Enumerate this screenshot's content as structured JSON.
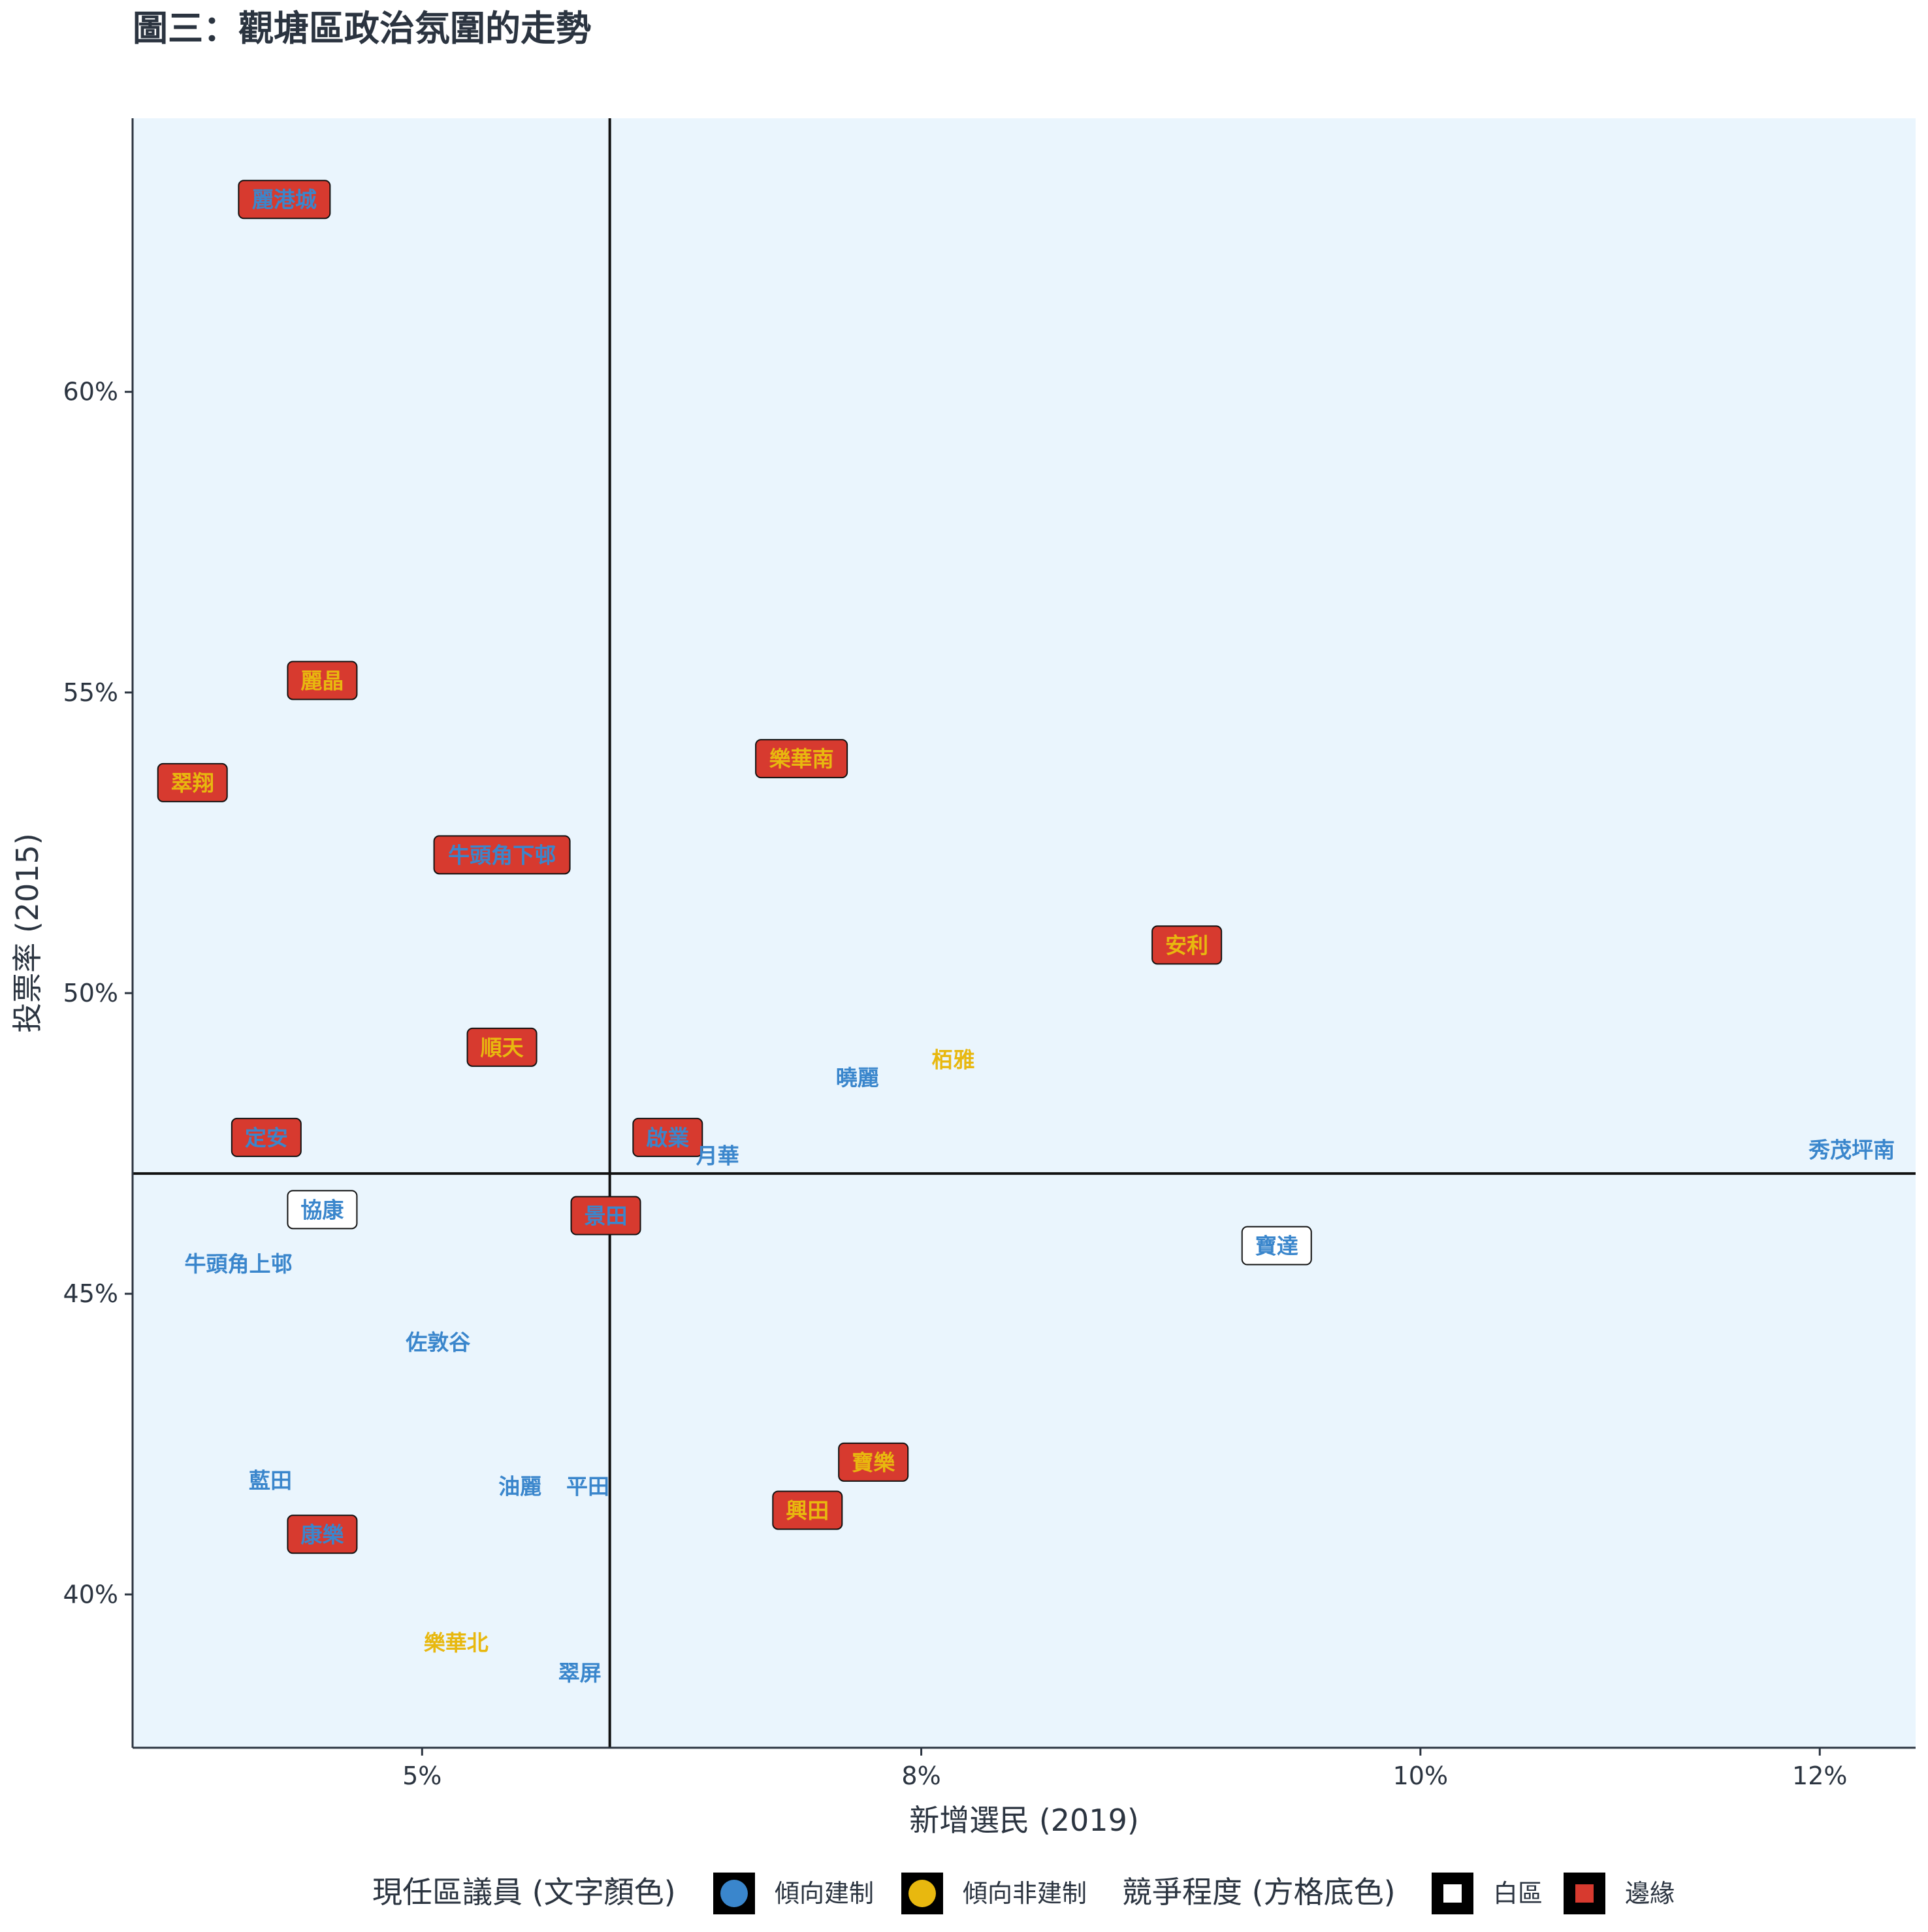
{
  "chart_data": {
    "type": "scatter",
    "title": "圖三：觀塘區政治氛圍的走勢",
    "xlabel": "新增選民 (2019)",
    "ylabel": "投票率 (2015)",
    "xlim": [
      0.0355,
      0.1248
    ],
    "ylim": [
      0.3745,
      0.6455
    ],
    "x_ticks": [
      {
        "value": 0.05,
        "label": "5%"
      },
      {
        "value": 0.075,
        "label": "8%"
      },
      {
        "value": 0.1,
        "label": "10%"
      },
      {
        "value": 0.12,
        "label": "12%"
      }
    ],
    "y_ticks": [
      {
        "value": 0.4,
        "label": "40%"
      },
      {
        "value": 0.45,
        "label": "45%"
      },
      {
        "value": 0.5,
        "label": "50%"
      },
      {
        "value": 0.55,
        "label": "55%"
      },
      {
        "value": 0.6,
        "label": "60%"
      }
    ],
    "reference_lines": {
      "x": 0.0594,
      "y": 0.47
    },
    "colors": {
      "pro_establishment": "#3a86cc",
      "non_establishment": "#e8b80f",
      "marginal_fill": "#d73a2f",
      "safe_fill": "#ffffff",
      "panel_fill": "#eaf5fd"
    },
    "points": [
      {
        "name": "麗港城",
        "x": 0.0431,
        "y": 0.632,
        "camp": "pro",
        "competition": "marginal"
      },
      {
        "name": "麗晶",
        "x": 0.045,
        "y": 0.552,
        "camp": "non",
        "competition": "marginal"
      },
      {
        "name": "翠翔",
        "x": 0.0385,
        "y": 0.535,
        "camp": "non",
        "competition": "marginal"
      },
      {
        "name": "牛頭角下邨",
        "x": 0.054,
        "y": 0.523,
        "camp": "pro",
        "competition": "marginal"
      },
      {
        "name": "樂華南",
        "x": 0.069,
        "y": 0.539,
        "camp": "non",
        "competition": "marginal"
      },
      {
        "name": "安利",
        "x": 0.0883,
        "y": 0.508,
        "camp": "non",
        "competition": "marginal"
      },
      {
        "name": "順天",
        "x": 0.054,
        "y": 0.491,
        "camp": "non",
        "competition": "marginal"
      },
      {
        "name": "栢雅",
        "x": 0.0766,
        "y": 0.489,
        "camp": "non",
        "competition": "none"
      },
      {
        "name": "曉麗",
        "x": 0.0718,
        "y": 0.486,
        "camp": "pro",
        "competition": "none"
      },
      {
        "name": "定安",
        "x": 0.0422,
        "y": 0.476,
        "camp": "pro",
        "competition": "marginal"
      },
      {
        "name": "啟業",
        "x": 0.0623,
        "y": 0.476,
        "camp": "pro",
        "competition": "marginal"
      },
      {
        "name": "月華",
        "x": 0.0648,
        "y": 0.473,
        "camp": "pro",
        "competition": "none"
      },
      {
        "name": "秀茂坪南",
        "x": 0.1216,
        "y": 0.474,
        "camp": "pro",
        "competition": "none"
      },
      {
        "name": "協康",
        "x": 0.045,
        "y": 0.464,
        "camp": "pro",
        "competition": "safe"
      },
      {
        "name": "景田",
        "x": 0.0592,
        "y": 0.463,
        "camp": "pro",
        "competition": "marginal"
      },
      {
        "name": "寶達",
        "x": 0.0928,
        "y": 0.458,
        "camp": "pro",
        "competition": "safe"
      },
      {
        "name": "牛頭角上邨",
        "x": 0.0408,
        "y": 0.455,
        "camp": "pro",
        "competition": "none"
      },
      {
        "name": "佐敦谷",
        "x": 0.0508,
        "y": 0.442,
        "camp": "pro",
        "competition": "none"
      },
      {
        "name": "寶樂",
        "x": 0.0726,
        "y": 0.422,
        "camp": "non",
        "competition": "marginal"
      },
      {
        "name": "藍田",
        "x": 0.0424,
        "y": 0.419,
        "camp": "pro",
        "competition": "none"
      },
      {
        "name": "油麗",
        "x": 0.0549,
        "y": 0.418,
        "camp": "pro",
        "competition": "none"
      },
      {
        "name": "平田",
        "x": 0.0583,
        "y": 0.418,
        "camp": "pro",
        "competition": "none"
      },
      {
        "name": "興田",
        "x": 0.0693,
        "y": 0.414,
        "camp": "non",
        "competition": "marginal"
      },
      {
        "name": "康樂",
        "x": 0.045,
        "y": 0.41,
        "camp": "pro",
        "competition": "marginal"
      },
      {
        "name": "樂華北",
        "x": 0.0517,
        "y": 0.392,
        "camp": "non",
        "competition": "none"
      },
      {
        "name": "翠屏",
        "x": 0.0579,
        "y": 0.387,
        "camp": "pro",
        "competition": "none"
      }
    ],
    "legend": {
      "placement": "bottom",
      "camp_title": "現任區議員 (文字顏色)",
      "camp_items": [
        {
          "key": "pro",
          "label": "傾向建制"
        },
        {
          "key": "non",
          "label": "傾向非建制"
        }
      ],
      "competition_title": "競爭程度 (方格底色)",
      "competition_items": [
        {
          "key": "safe",
          "label": "白區"
        },
        {
          "key": "marginal",
          "label": "邊緣"
        }
      ]
    }
  }
}
